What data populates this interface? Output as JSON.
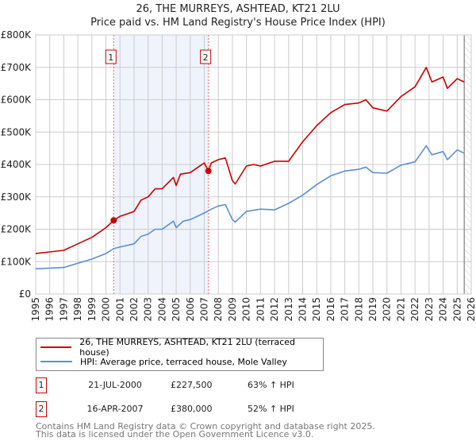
{
  "title_line1": "26, THE MURREYS, ASHTEAD, KT21 2LU",
  "title_line2": "Price paid vs. HM Land Registry's House Price Index (HPI)",
  "colors": {
    "property": "#cc0000",
    "hpi": "#5b8fd4",
    "shade": "#eef3fc",
    "grid": "#cccccc"
  },
  "chart_data": {
    "type": "line",
    "ylim": [
      0,
      800000
    ],
    "xlim": [
      1995,
      2026
    ],
    "yticks": [
      {
        "v": 0,
        "label": "£0"
      },
      {
        "v": 100000,
        "label": "£100K"
      },
      {
        "v": 200000,
        "label": "£200K"
      },
      {
        "v": 300000,
        "label": "£300K"
      },
      {
        "v": 400000,
        "label": "£400K"
      },
      {
        "v": 500000,
        "label": "£500K"
      },
      {
        "v": 600000,
        "label": "£600K"
      },
      {
        "v": 700000,
        "label": "£700K"
      },
      {
        "v": 800000,
        "label": "£800K"
      }
    ],
    "xticks": [
      "1995",
      "1996",
      "1997",
      "1998",
      "1999",
      "2000",
      "2001",
      "2002",
      "2003",
      "2004",
      "2005",
      "2006",
      "2007",
      "2008",
      "2009",
      "2010",
      "2011",
      "2012",
      "2013",
      "2014",
      "2015",
      "2016",
      "2017",
      "2018",
      "2019",
      "2020",
      "2021",
      "2022",
      "2023",
      "2024",
      "2025",
      "2026"
    ],
    "series": [
      {
        "name": "26, THE MURREYS, ASHTEAD, KT21 2LU (terraced house)",
        "color": "#cc0000",
        "x": [
          1995,
          1996,
          1997,
          1998,
          1999,
          2000,
          2000.55,
          2001,
          2002,
          2002.5,
          2003,
          2003.5,
          2004,
          2004.8,
          2005,
          2005.3,
          2006,
          2007,
          2007.29,
          2007.5,
          2008,
          2008.5,
          2009,
          2009.2,
          2010,
          2010.5,
          2011,
          2012,
          2013,
          2014,
          2015,
          2016,
          2017,
          2018,
          2018.5,
          2019,
          2020,
          2021,
          2022,
          2022.8,
          2023.2,
          2024,
          2024.3,
          2025,
          2025.5
        ],
        "y": [
          125000,
          130000,
          135000,
          155000,
          175000,
          205000,
          227500,
          240000,
          255000,
          290000,
          300000,
          325000,
          325000,
          360000,
          335000,
          370000,
          375000,
          405000,
          380000,
          405000,
          415000,
          420000,
          350000,
          340000,
          395000,
          400000,
          395000,
          410000,
          410000,
          470000,
          520000,
          560000,
          585000,
          590000,
          600000,
          575000,
          565000,
          610000,
          640000,
          700000,
          655000,
          670000,
          635000,
          665000,
          655000
        ]
      },
      {
        "name": "HPI: Average price, terraced house, Mole Valley",
        "color": "#5b8fd4",
        "x": [
          1995,
          1996,
          1997,
          1998,
          1999,
          2000,
          2000.55,
          2001,
          2002,
          2002.5,
          2003,
          2003.5,
          2004,
          2004.8,
          2005,
          2005.5,
          2006,
          2007,
          2007.5,
          2008,
          2008.5,
          2009,
          2009.2,
          2010,
          2011,
          2012,
          2013,
          2014,
          2015,
          2016,
          2017,
          2018,
          2018.5,
          2019,
          2020,
          2021,
          2022,
          2022.8,
          2023.2,
          2024,
          2024.3,
          2025,
          2025.5
        ],
        "y": [
          78000,
          80000,
          82000,
          95000,
          108000,
          125000,
          140000,
          145000,
          155000,
          178000,
          185000,
          200000,
          200000,
          225000,
          205000,
          225000,
          230000,
          250000,
          262000,
          272000,
          276000,
          230000,
          222000,
          255000,
          262000,
          260000,
          280000,
          305000,
          338000,
          365000,
          380000,
          385000,
          392000,
          375000,
          373000,
          398000,
          408000,
          458000,
          430000,
          440000,
          415000,
          445000,
          435000
        ]
      }
    ],
    "sales": [
      {
        "id": "1",
        "x": 2000.55,
        "y": 227500
      },
      {
        "id": "2",
        "x": 2007.29,
        "y": 380000
      }
    ],
    "forecast_start": 2025.5,
    "legend_position": "below"
  },
  "legend": {
    "property": "26, THE MURREYS, ASHTEAD, KT21 2LU (terraced house)",
    "hpi": "HPI: Average price, terraced house, Mole Valley"
  },
  "transactions": [
    {
      "id": "1",
      "date": "21-JUL-2000",
      "price": "£227,500",
      "hpi": "63% ↑ HPI"
    },
    {
      "id": "2",
      "date": "16-APR-2007",
      "price": "£380,000",
      "hpi": "52% ↑ HPI"
    }
  ],
  "footer": {
    "line1": "Contains HM Land Registry data © Crown copyright and database right 2025.",
    "line2": "This data is licensed under the Open Government Licence v3.0."
  }
}
